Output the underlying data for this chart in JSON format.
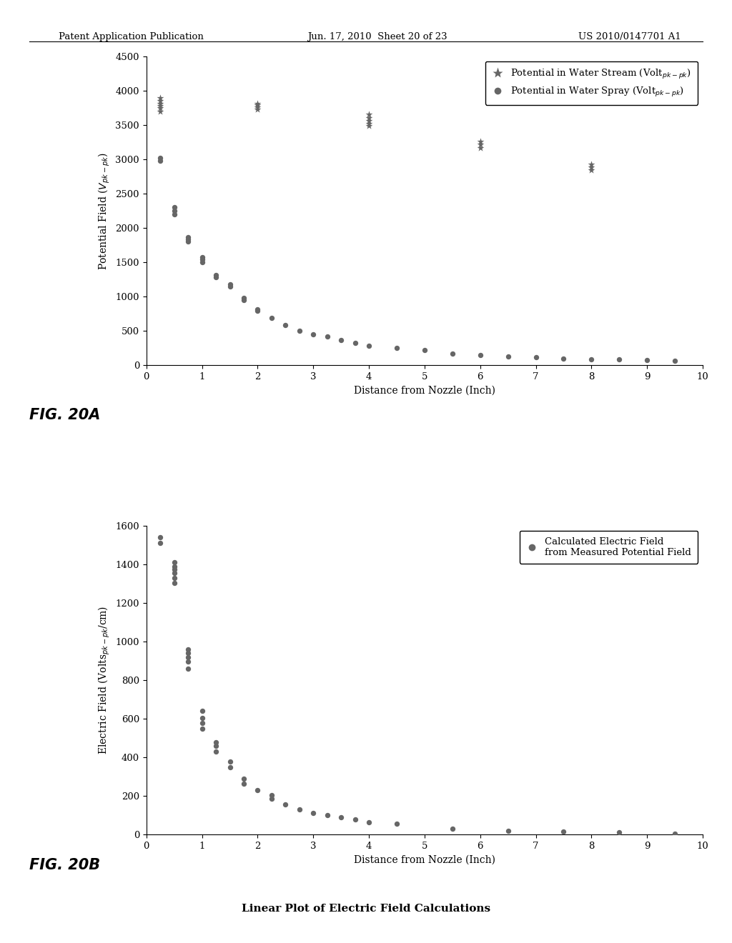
{
  "header_left": "Patent Application Publication",
  "header_mid": "Jun. 17, 2010  Sheet 20 of 23",
  "header_right": "US 2010/0147701 A1",
  "fig20a": {
    "xlabel": "Distance from Nozzle (Inch)",
    "xlim": [
      0,
      10
    ],
    "ylim": [
      0,
      4500
    ],
    "yticks": [
      0,
      500,
      1000,
      1500,
      2000,
      2500,
      3000,
      3500,
      4000,
      4500
    ],
    "xticks": [
      0,
      1,
      2,
      3,
      4,
      5,
      6,
      7,
      8,
      9,
      10
    ],
    "stream_x": [
      0.25,
      0.25,
      0.25,
      0.25,
      0.25,
      0.25,
      2.0,
      2.0,
      2.0,
      2.0,
      4.0,
      4.0,
      4.0,
      4.0,
      4.0,
      6.0,
      6.0,
      6.0,
      8.0,
      8.0,
      8.0
    ],
    "stream_y": [
      3900,
      3860,
      3820,
      3780,
      3750,
      3700,
      3820,
      3790,
      3760,
      3730,
      3660,
      3610,
      3560,
      3520,
      3490,
      3260,
      3220,
      3170,
      2930,
      2890,
      2850
    ],
    "spray_x": [
      0.25,
      0.25,
      0.5,
      0.5,
      0.5,
      0.75,
      0.75,
      0.75,
      1.0,
      1.0,
      1.0,
      1.25,
      1.25,
      1.5,
      1.5,
      1.75,
      1.75,
      2.0,
      2.0,
      2.25,
      2.5,
      2.75,
      3.0,
      3.25,
      3.5,
      3.75,
      4.0,
      4.5,
      5.0,
      5.5,
      6.0,
      6.5,
      7.0,
      7.5,
      8.0,
      8.5,
      9.0,
      9.5
    ],
    "spray_y": [
      3020,
      2980,
      2310,
      2250,
      2200,
      1870,
      1840,
      1800,
      1580,
      1540,
      1500,
      1315,
      1280,
      1185,
      1150,
      980,
      950,
      820,
      790,
      690,
      590,
      500,
      455,
      415,
      370,
      330,
      280,
      250,
      220,
      175,
      150,
      130,
      115,
      100,
      90,
      85,
      75,
      65
    ]
  },
  "fig20b": {
    "xlabel": "Distance from Nozzle (Inch)",
    "xlim": [
      0,
      10
    ],
    "ylim": [
      0,
      1600
    ],
    "yticks": [
      0,
      200,
      400,
      600,
      800,
      1000,
      1200,
      1400,
      1600
    ],
    "xticks": [
      0,
      1,
      2,
      3,
      4,
      5,
      6,
      7,
      8,
      9,
      10
    ],
    "ef_x": [
      0.25,
      0.25,
      0.5,
      0.5,
      0.5,
      0.5,
      0.5,
      0.5,
      0.75,
      0.75,
      0.75,
      0.75,
      0.75,
      1.0,
      1.0,
      1.0,
      1.0,
      1.25,
      1.25,
      1.25,
      1.5,
      1.5,
      1.75,
      1.75,
      2.0,
      2.25,
      2.25,
      2.5,
      2.75,
      3.0,
      3.25,
      3.5,
      3.75,
      4.0,
      4.5,
      5.5,
      6.5,
      7.5,
      8.5,
      9.5
    ],
    "ef_y": [
      1540,
      1510,
      1410,
      1390,
      1375,
      1355,
      1330,
      1305,
      960,
      940,
      920,
      895,
      860,
      640,
      605,
      580,
      550,
      480,
      460,
      430,
      380,
      350,
      290,
      265,
      230,
      205,
      185,
      155,
      130,
      110,
      100,
      90,
      80,
      65,
      55,
      30,
      20,
      15,
      10,
      5
    ],
    "legend": "Calculated Electric Field\nfrom Measured Potential Field"
  },
  "fig_label_a": "FIG. 20A",
  "fig_label_b": "FIG. 20B",
  "bottom_title": "Linear Plot of Electric Field Calculations",
  "scatter_color": "#666666"
}
